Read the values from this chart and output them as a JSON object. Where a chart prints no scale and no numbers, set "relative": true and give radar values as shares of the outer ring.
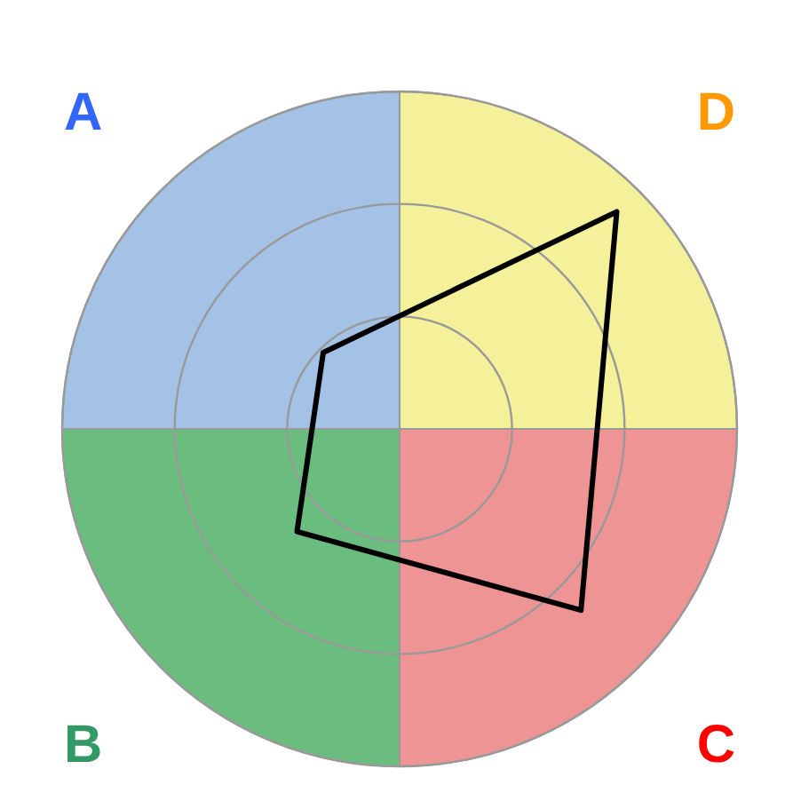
{
  "chart_data": {
    "type": "radar",
    "relative": true,
    "categories": [
      "D",
      "C",
      "B",
      "A"
    ],
    "colors": [
      "#f4f19a",
      "#ef9494",
      "#6bbd7f",
      "#a4c2e6"
    ],
    "series": [
      {
        "color": "#000000",
        "values": [
          0.91,
          0.76,
          0.43,
          0.32
        ]
      }
    ],
    "grid": true
  }
}
